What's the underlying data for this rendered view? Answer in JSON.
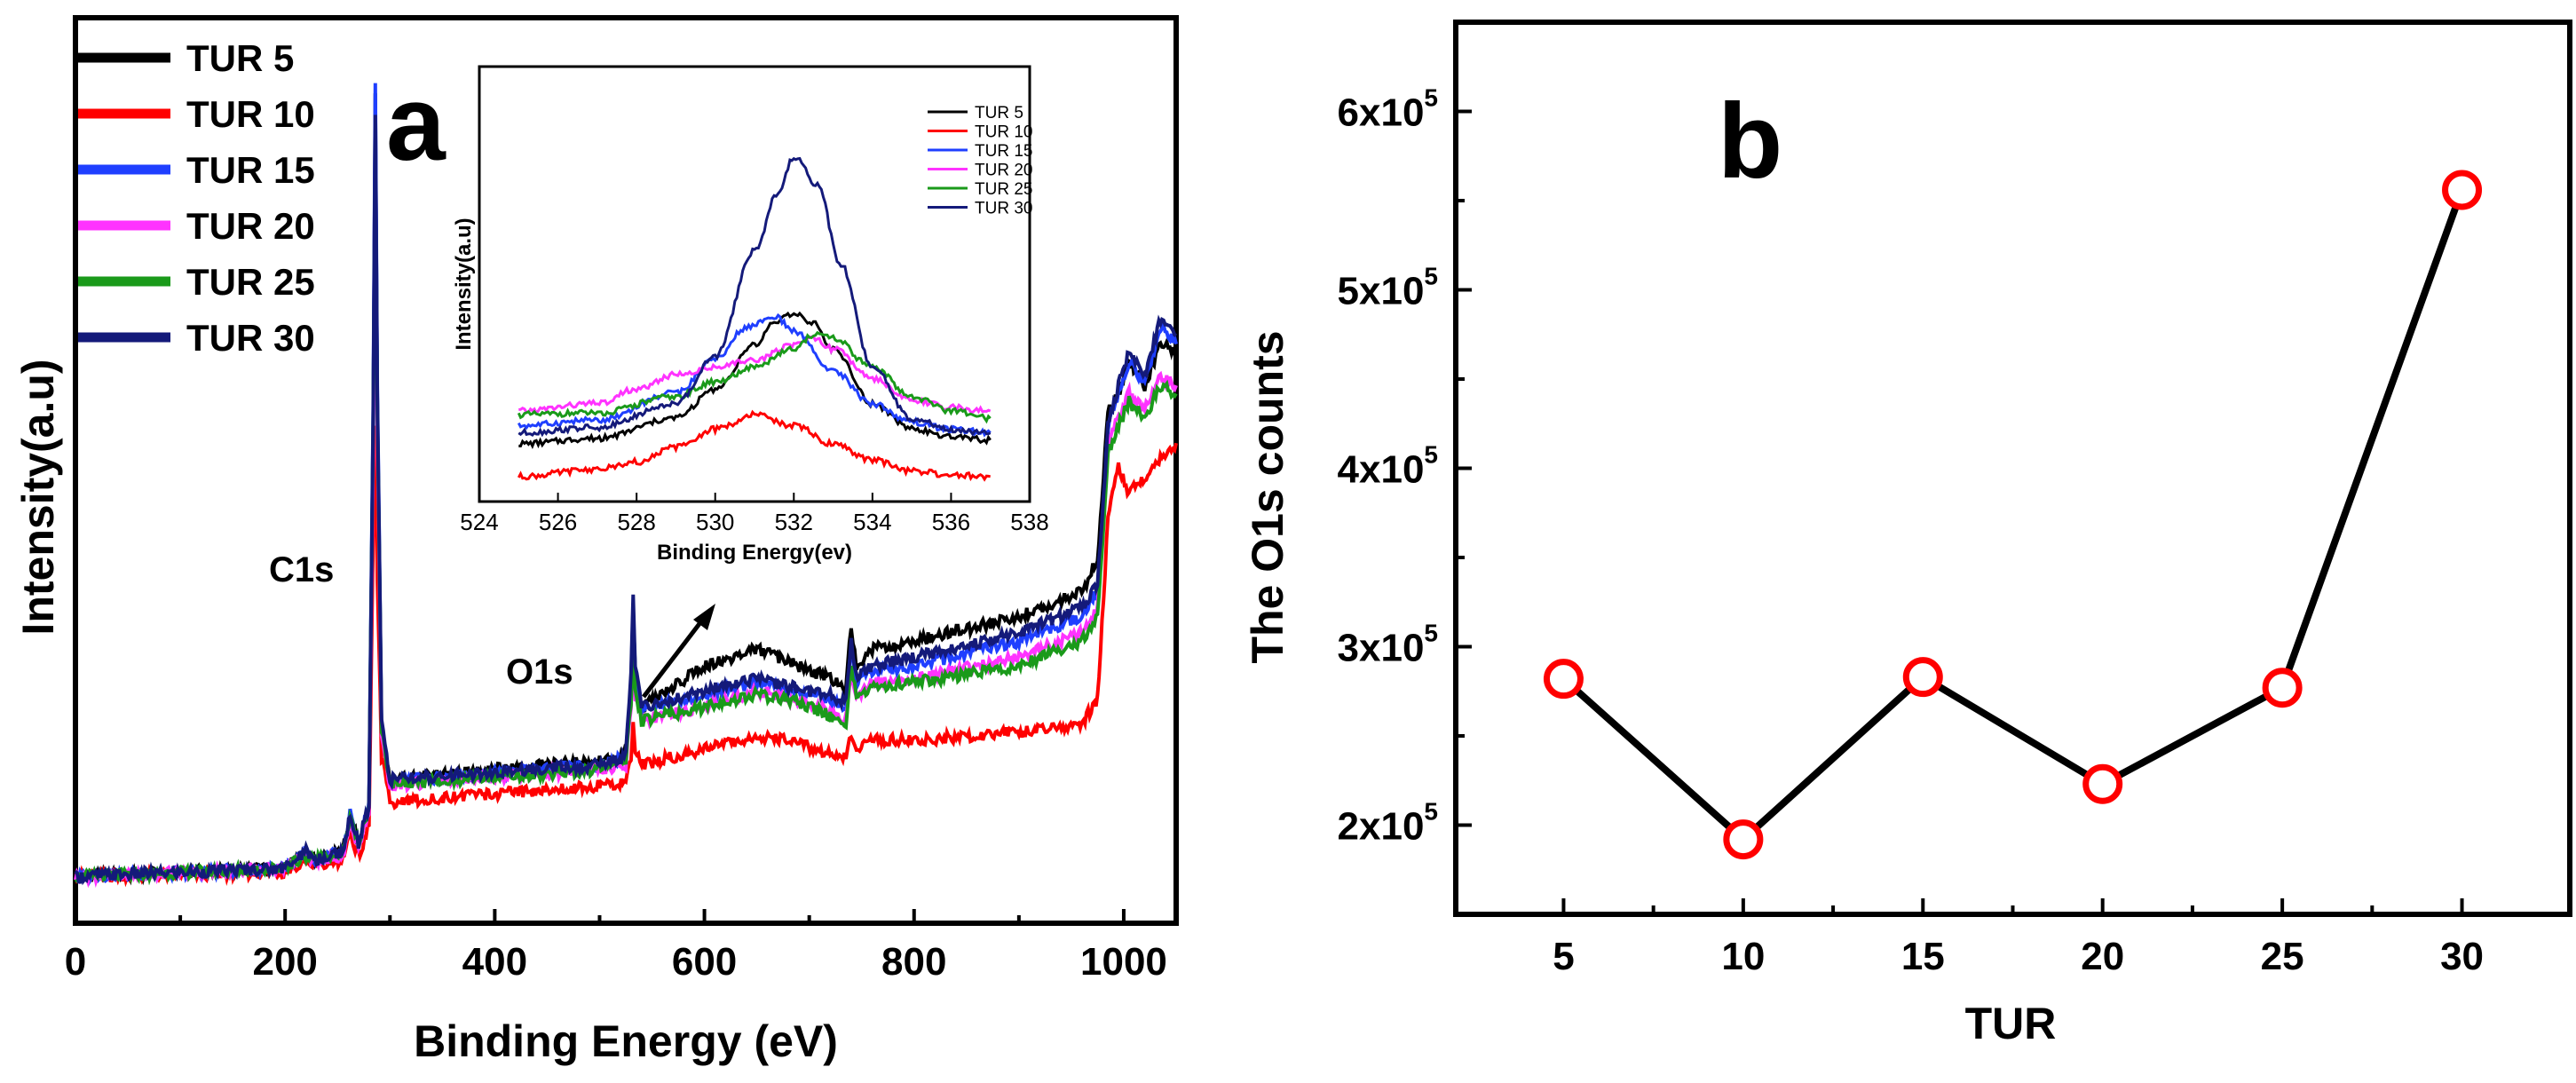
{
  "chart_data": [
    {
      "panel": "a",
      "type": "line",
      "title": "",
      "xlabel": "Binding Energy (eV)",
      "ylabel": "Intensity(a.u)",
      "xlim": [
        0,
        1050
      ],
      "ylim": [
        0,
        100
      ],
      "xticks": [
        0,
        200,
        400,
        600,
        800,
        1000
      ],
      "xtick_labels": [
        "0",
        "200",
        "400",
        "600",
        "800",
        "1000"
      ],
      "yticks_visible": false,
      "legend_position": "top-left",
      "annotations": [
        {
          "text": "C1s",
          "x": 285
        },
        {
          "text": "O1s",
          "x": 532
        }
      ],
      "series": [
        {
          "name": "TUR 5",
          "color": "#000000",
          "x": [
            0,
            200,
            220,
            230,
            255,
            262,
            270,
            280,
            284,
            286,
            288,
            292,
            300,
            400,
            500,
            525,
            530,
            532,
            534,
            540,
            600,
            650,
            680,
            720,
            735,
            740,
            745,
            760,
            800,
            900,
            960,
            975,
            985,
            995,
            1005,
            1020,
            1035,
            1050
          ],
          "y": [
            3.5,
            4.5,
            6.5,
            5.5,
            6.5,
            11,
            7.5,
            12,
            56,
            98,
            60,
            21,
            15.2,
            16.5,
            17.5,
            18.5,
            27,
            36,
            28,
            24,
            29,
            31,
            29.5,
            27.5,
            26,
            34,
            29,
            31,
            32,
            35,
            38,
            42,
            60,
            62,
            66,
            63,
            68,
            67
          ]
        },
        {
          "name": "TUR 10",
          "color": "#ff0000",
          "x": [
            0,
            200,
            220,
            230,
            255,
            262,
            270,
            280,
            284,
            286,
            288,
            292,
            300,
            400,
            500,
            525,
            530,
            532,
            534,
            540,
            600,
            650,
            680,
            720,
            735,
            740,
            745,
            760,
            800,
            900,
            960,
            975,
            985,
            995,
            1005,
            1020,
            1035,
            1050
          ],
          "y": [
            3.5,
            4,
            5.5,
            5,
            5.5,
            8.5,
            6,
            9.5,
            45,
            58,
            40,
            18,
            12.5,
            13.5,
            14.5,
            15,
            18,
            22,
            18.5,
            17,
            19,
            20.5,
            20,
            18.5,
            18,
            21,
            19,
            20,
            20,
            21,
            22,
            25,
            47,
            53,
            50,
            52,
            54,
            56
          ]
        },
        {
          "name": "TUR 15",
          "color": "#1f3fff",
          "x": [
            0,
            200,
            220,
            230,
            255,
            262,
            270,
            280,
            284,
            286,
            288,
            292,
            300,
            400,
            500,
            525,
            530,
            532,
            534,
            540,
            600,
            650,
            680,
            720,
            735,
            740,
            745,
            760,
            800,
            900,
            960,
            975,
            985,
            995,
            1005,
            1020,
            1035,
            1050
          ],
          "y": [
            3.5,
            4.5,
            6.5,
            5.5,
            6.5,
            11,
            7.5,
            12,
            60,
            100,
            62,
            22,
            15,
            16,
            17,
            18,
            27,
            36,
            28,
            23.5,
            25.5,
            27,
            26,
            25,
            24,
            31,
            27,
            28.5,
            29,
            32,
            35,
            38,
            58,
            62,
            66,
            63,
            70,
            68
          ]
        },
        {
          "name": "TUR 20",
          "color": "#ff33ff",
          "x": [
            0,
            200,
            220,
            230,
            255,
            262,
            270,
            280,
            284,
            286,
            288,
            292,
            300,
            400,
            500,
            525,
            530,
            532,
            534,
            540,
            600,
            650,
            680,
            720,
            735,
            740,
            745,
            760,
            800,
            900,
            960,
            975,
            985,
            995,
            1005,
            1020,
            1035,
            1050
          ],
          "y": [
            3.5,
            4.5,
            6,
            5.5,
            6,
            10.5,
            7,
            11.5,
            55,
            88,
            58,
            21,
            14.5,
            15.5,
            16.5,
            17,
            24,
            31,
            25,
            22.5,
            24,
            26,
            25,
            23.5,
            22.5,
            28,
            25,
            27,
            27.5,
            30,
            33,
            36,
            56,
            59,
            62,
            60,
            64,
            63
          ]
        },
        {
          "name": "TUR 25",
          "color": "#1a9a1a",
          "x": [
            0,
            200,
            220,
            230,
            255,
            262,
            270,
            280,
            284,
            286,
            288,
            292,
            300,
            400,
            500,
            525,
            530,
            532,
            534,
            540,
            600,
            650,
            680,
            720,
            735,
            740,
            745,
            760,
            800,
            900,
            960,
            975,
            985,
            995,
            1005,
            1020,
            1035,
            1050
          ],
          "y": [
            3.5,
            4.5,
            6,
            5.5,
            6.5,
            10.5,
            7.5,
            11.5,
            58,
            92,
            60,
            21.5,
            14.8,
            15.5,
            16.5,
            17.5,
            25,
            33,
            26,
            22.5,
            24,
            25.5,
            25,
            23,
            22,
            29,
            25.5,
            26.5,
            27,
            29,
            32,
            35,
            55,
            58,
            61,
            59,
            63,
            62
          ]
        },
        {
          "name": "TUR 30",
          "color": "#141a7a",
          "x": [
            0,
            200,
            220,
            230,
            255,
            262,
            270,
            280,
            284,
            286,
            288,
            292,
            300,
            400,
            500,
            525,
            530,
            532,
            534,
            540,
            600,
            650,
            680,
            720,
            735,
            740,
            745,
            760,
            800,
            900,
            960,
            975,
            985,
            995,
            1005,
            1020,
            1035,
            1050
          ],
          "y": [
            3.5,
            4.5,
            6.5,
            5.5,
            6.5,
            11,
            7.5,
            12,
            59,
            96,
            61,
            22,
            15.2,
            16.2,
            17,
            18,
            28,
            37,
            29,
            24,
            26,
            27.5,
            26.5,
            25.5,
            24.5,
            32,
            27.5,
            29,
            30,
            33,
            36,
            39,
            58,
            63,
            67,
            64,
            71,
            69
          ]
        }
      ]
    },
    {
      "panel": "a-inset",
      "type": "line",
      "title": "",
      "xlabel": "Binding Energy(ev)",
      "ylabel": "Intensity(a.u)",
      "xlim": [
        524,
        538
      ],
      "ylim": [
        0,
        100
      ],
      "xticks": [
        524,
        526,
        528,
        530,
        532,
        534,
        536,
        538
      ],
      "xtick_labels": [
        "524",
        "526",
        "528",
        "530",
        "532",
        "534",
        "536",
        "538"
      ],
      "legend_position": "top-right",
      "series": [
        {
          "name": "TUR 5",
          "color": "#000000",
          "x": [
            525,
            527,
            529,
            530,
            531,
            531.5,
            532,
            532.5,
            533,
            534,
            535,
            536,
            537
          ],
          "y": [
            11,
            12.5,
            18,
            26,
            38,
            44,
            47,
            44,
            37,
            22,
            15,
            13,
            12
          ]
        },
        {
          "name": "TUR 10",
          "color": "#ff0000",
          "x": [
            525,
            527,
            528,
            529,
            530,
            531,
            532,
            533,
            534,
            535,
            536,
            537
          ],
          "y": [
            2,
            4,
            6,
            10,
            15,
            19,
            16,
            11,
            6.5,
            3.5,
            2.5,
            2
          ]
        },
        {
          "name": "TUR 15",
          "color": "#1f3fff",
          "x": [
            525,
            527,
            529,
            530,
            530.8,
            531.5,
            532,
            533,
            534,
            535,
            536,
            537
          ],
          "y": [
            16,
            17.5,
            25,
            34,
            43,
            46,
            42,
            31,
            22,
            17,
            15,
            14
          ]
        },
        {
          "name": "TUR 20",
          "color": "#ff33ff",
          "x": [
            525,
            527,
            528,
            529,
            530,
            531,
            532,
            532.5,
            533,
            534,
            535,
            536,
            537
          ],
          "y": [
            20,
            22,
            26,
            30,
            32,
            34,
            38,
            40,
            37,
            29,
            23,
            21,
            20
          ]
        },
        {
          "name": "TUR 25",
          "color": "#1a9a1a",
          "x": [
            525,
            527,
            529,
            530,
            531,
            532,
            532.5,
            533,
            534,
            535,
            536,
            537
          ],
          "y": [
            19,
            19.5,
            24,
            28,
            32,
            37,
            41,
            40,
            32,
            24,
            20,
            18
          ]
        },
        {
          "name": "TUR 30",
          "color": "#141a7a",
          "x": [
            525,
            527,
            529,
            530,
            531,
            531.6,
            532,
            532.6,
            533.2,
            534,
            535,
            536,
            537
          ],
          "y": [
            14,
            15.5,
            22,
            35,
            64,
            80,
            90,
            82,
            60,
            32,
            18,
            15,
            14
          ]
        }
      ]
    },
    {
      "panel": "b",
      "type": "line",
      "title": "",
      "xlabel": "TUR",
      "ylabel": "The O1s counts",
      "xlim": [
        2,
        33
      ],
      "ylim": [
        150000,
        650000
      ],
      "xticks": [
        5,
        10,
        15,
        20,
        25,
        30
      ],
      "xtick_labels": [
        "5",
        "10",
        "15",
        "20",
        "25",
        "30"
      ],
      "yticks": [
        200000,
        300000,
        400000,
        500000,
        600000
      ],
      "ytick_mantissas": [
        "2x10",
        "3x10",
        "4x10",
        "5x10",
        "6x10"
      ],
      "ytick_exponent": "5",
      "legend_position": "none",
      "series": [
        {
          "name": "O1s counts",
          "line_color": "#000000",
          "marker_color": "#ff0000",
          "x": [
            5,
            10,
            15,
            20,
            25,
            30
          ],
          "y": [
            282000,
            192000,
            283000,
            223000,
            277000,
            556000
          ]
        }
      ]
    }
  ],
  "panel_labels": {
    "a": "a",
    "b": "b"
  },
  "colors": {
    "axis": "#000000",
    "background": "#ffffff"
  }
}
